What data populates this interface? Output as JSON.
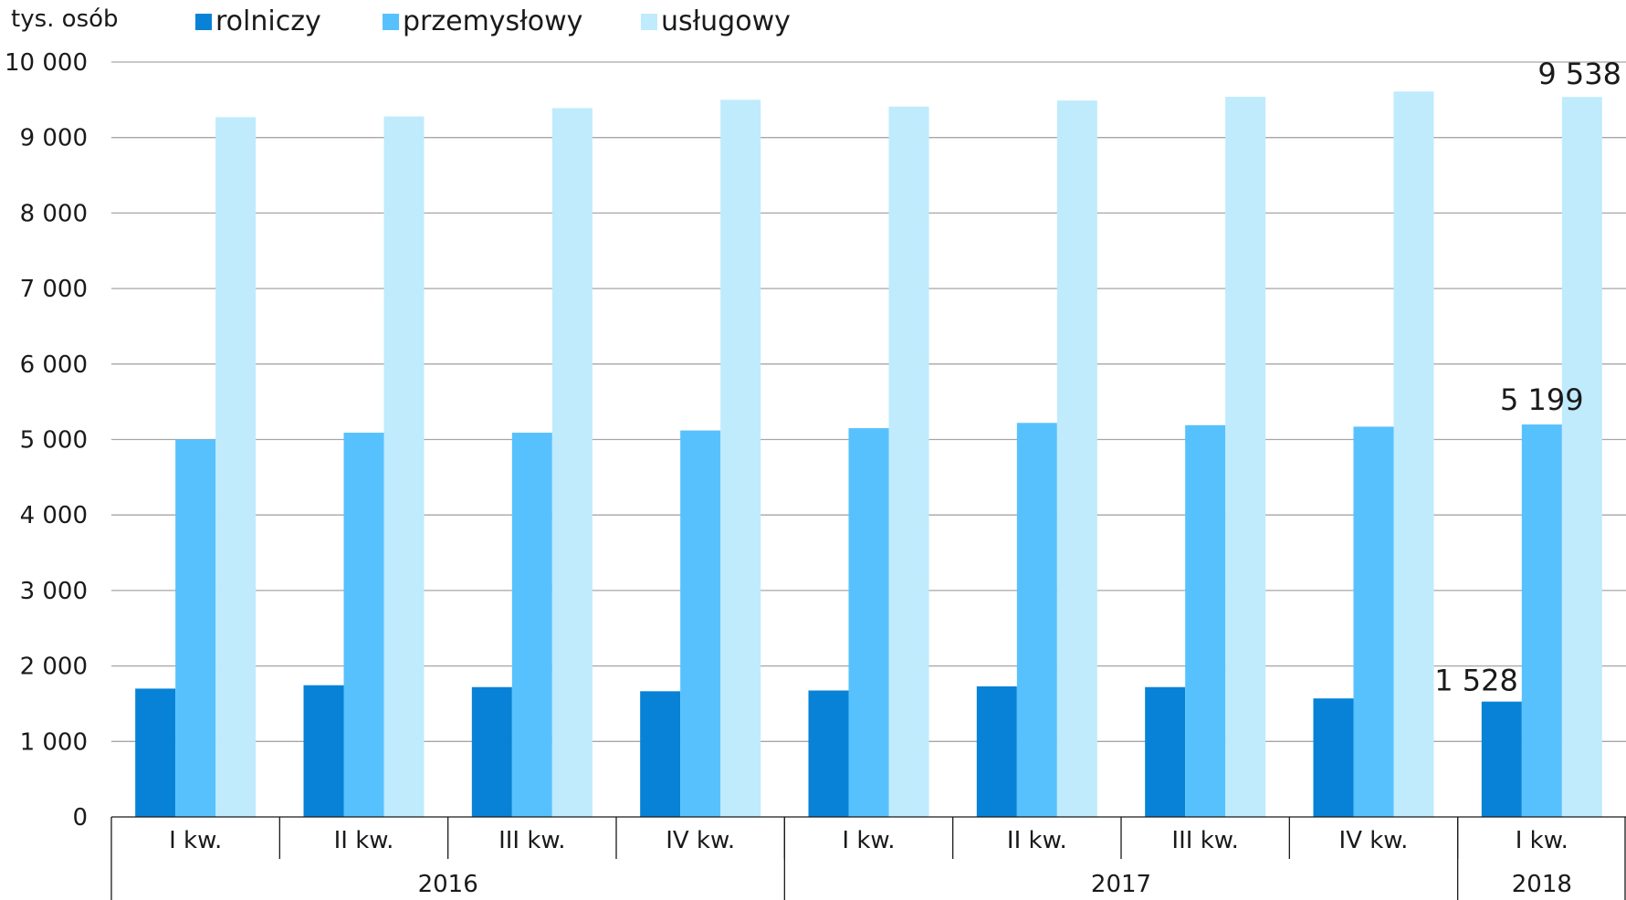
{
  "chart_data": {
    "type": "bar",
    "unit_label": "tys. osób",
    "ylim": [
      0,
      10000
    ],
    "yticks": [
      {
        "value": 0,
        "label": "0"
      },
      {
        "value": 1000,
        "label": "1 000"
      },
      {
        "value": 2000,
        "label": "2 000"
      },
      {
        "value": 3000,
        "label": "3 000"
      },
      {
        "value": 4000,
        "label": "4 000"
      },
      {
        "value": 5000,
        "label": "5 000"
      },
      {
        "value": 6000,
        "label": "6 000"
      },
      {
        "value": 7000,
        "label": "7 000"
      },
      {
        "value": 8000,
        "label": "8 000"
      },
      {
        "value": 9000,
        "label": "9 000"
      },
      {
        "value": 10000,
        "label": "10 000"
      }
    ],
    "categories": [
      "I kw.",
      "II kw.",
      "III kw.",
      "IV kw.",
      "I kw.",
      "II kw.",
      "III kw.",
      "IV kw.",
      "I kw."
    ],
    "year_groups": [
      {
        "label": "2016",
        "count": 4
      },
      {
        "label": "2017",
        "count": 4
      },
      {
        "label": "2018",
        "count": 1
      }
    ],
    "grid": true,
    "legend_position": "top",
    "series": [
      {
        "name": "rolniczy",
        "color": "#0782d6",
        "values": [
          1700,
          1745,
          1720,
          1665,
          1675,
          1730,
          1720,
          1570,
          1528
        ]
      },
      {
        "name": "przemysłowy",
        "color": "#57c1fd",
        "values": [
          5000,
          5090,
          5090,
          5120,
          5150,
          5220,
          5190,
          5170,
          5199
        ]
      },
      {
        "name": "usługowy",
        "color": "#bfebfc",
        "values": [
          9270,
          9280,
          9390,
          9500,
          9410,
          9490,
          9540,
          9610,
          9538
        ]
      }
    ],
    "data_labels": [
      {
        "series": 0,
        "index": 8,
        "text": "1 528"
      },
      {
        "series": 1,
        "index": 8,
        "text": "5 199"
      },
      {
        "series": 2,
        "index": 8,
        "text": "9 538"
      }
    ]
  }
}
